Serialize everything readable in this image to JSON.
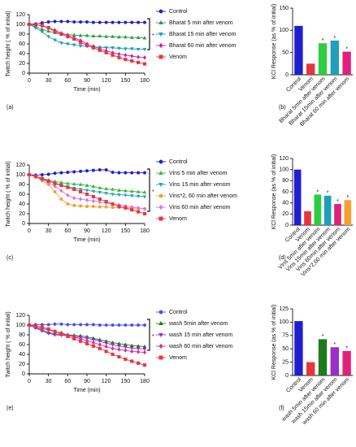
{
  "chart_data": [
    {
      "type": "line",
      "panel_label": "(a)",
      "xlabel": "Time (min)",
      "ylabel": "Twitch height ( % of initial)",
      "x": [
        0,
        10,
        20,
        30,
        40,
        50,
        60,
        70,
        80,
        90,
        100,
        110,
        120,
        130,
        140,
        150,
        160,
        170,
        180
      ],
      "xlim": [
        0,
        180
      ],
      "xticks": [
        0,
        30,
        60,
        90,
        120,
        150,
        180
      ],
      "ylim": [
        0,
        120
      ],
      "yticks": [
        0,
        20,
        40,
        60,
        80,
        100,
        120
      ],
      "series": [
        {
          "name": "Control",
          "color": "#1f1fd1",
          "marker": "circle",
          "values": [
            100,
            101,
            103,
            105,
            106,
            106,
            106,
            105,
            105,
            105,
            104,
            104,
            104,
            104,
            104,
            104,
            104,
            104,
            104
          ]
        },
        {
          "name": "Bharat 5 min after venom",
          "color": "#2e9e3a",
          "marker": "triangle",
          "values": [
            100,
            95,
            90,
            86,
            83,
            80,
            79,
            78,
            77,
            77,
            76,
            76,
            75,
            75,
            74,
            74,
            73,
            73,
            72
          ]
        },
        {
          "name": "Bharat 15 min after venom",
          "color": "#1fa0b8",
          "marker": "inverted-triangle",
          "values": [
            100,
            93,
            85,
            75,
            68,
            62,
            60,
            58,
            56,
            55,
            54,
            53,
            52,
            52,
            51,
            50,
            50,
            49,
            49
          ]
        },
        {
          "name": "Bharat 60 min after venom",
          "color": "#d21fa8",
          "marker": "diamond",
          "values": [
            100,
            99,
            97,
            93,
            88,
            82,
            78,
            72,
            67,
            60,
            55,
            50,
            46,
            42,
            39,
            37,
            35,
            33,
            32
          ]
        },
        {
          "name": "Venom",
          "color": "#e8343e",
          "marker": "square",
          "values": [
            100,
            99,
            98,
            93,
            85,
            80,
            75,
            70,
            63,
            57,
            52,
            47,
            42,
            37,
            32,
            28,
            25,
            22,
            19
          ]
        }
      ],
      "bracket": {
        "label": "*",
        "from": 1,
        "to": 3
      }
    },
    {
      "type": "bar",
      "panel_label": "(b)",
      "ylabel": "KCl Response (as % of initial)",
      "categories": [
        "Control",
        "Venom",
        "Bharat 5min after venom",
        "Bharat 15min after venom",
        "Bharat 60 min after venom"
      ],
      "values": [
        110,
        25,
        71,
        77,
        52
      ],
      "colors": [
        "#1f1fd1",
        "#e8343e",
        "#2ecc40",
        "#1fa0b8",
        "#e0207a"
      ],
      "significance": [
        null,
        null,
        "*",
        "*",
        "*"
      ],
      "ylim": [
        0,
        150
      ],
      "yticks": [
        0,
        50,
        100,
        150
      ]
    },
    {
      "type": "line",
      "panel_label": "(c)",
      "xlabel": "Time (min)",
      "ylabel": "Twitch height ( % of initial)",
      "x": [
        0,
        10,
        20,
        30,
        40,
        50,
        60,
        70,
        80,
        90,
        100,
        110,
        120,
        130,
        140,
        150,
        160,
        170,
        180
      ],
      "xlim": [
        0,
        180
      ],
      "xticks": [
        0,
        30,
        60,
        90,
        120,
        150,
        180
      ],
      "ylim": [
        0,
        120
      ],
      "yticks": [
        0,
        20,
        40,
        60,
        80,
        100,
        120
      ],
      "series": [
        {
          "name": "Control",
          "color": "#1f1fd1",
          "marker": "circle",
          "values": [
            100,
            99,
            100,
            101,
            103,
            104,
            105,
            106,
            107,
            108,
            109,
            110,
            110,
            105,
            104,
            104,
            104,
            104,
            104
          ]
        },
        {
          "name": "Vins 5 min after venom",
          "color": "#3cb83c",
          "marker": "triangle",
          "values": [
            100,
            97,
            93,
            89,
            86,
            84,
            82,
            81,
            80,
            78,
            76,
            73,
            71,
            70,
            68,
            67,
            66,
            65,
            64
          ]
        },
        {
          "name": "Vins 15 min after venom",
          "color": "#2aa6b8",
          "marker": "inverted-triangle",
          "values": [
            100,
            96,
            91,
            87,
            83,
            79,
            75,
            72,
            70,
            68,
            66,
            64,
            62,
            60,
            59,
            58,
            57,
            56,
            55
          ]
        },
        {
          "name": "Vins*2, 60 min after venom",
          "color": "#f5a030",
          "marker": "circle",
          "values": [
            100,
            95,
            88,
            80,
            65,
            50,
            40,
            37,
            36,
            35,
            35,
            34,
            34,
            33,
            33,
            32,
            32,
            31,
            30
          ]
        },
        {
          "name": "Vins 60 min after venom",
          "color": "#e070d8",
          "marker": "diamond",
          "values": [
            100,
            96,
            90,
            84,
            76,
            67,
            58,
            52,
            50,
            48,
            46,
            44,
            42,
            40,
            38,
            36,
            34,
            32,
            30
          ]
        },
        {
          "name": "Venom",
          "color": "#e8343e",
          "marker": "square",
          "values": [
            100,
            97,
            92,
            87,
            82,
            78,
            74,
            70,
            65,
            60,
            55,
            50,
            45,
            40,
            35,
            32,
            28,
            24,
            20
          ]
        }
      ],
      "bracket": {
        "label": "*",
        "from": 1,
        "to": 4
      }
    },
    {
      "type": "bar",
      "panel_label": "(d)",
      "ylabel": "KCl Response (as % of initial)",
      "categories": [
        "Control",
        "Venom",
        "Vins 5min after venom",
        "Vins 15min after venom",
        "Vins 60min after venom",
        "Vins*2,60 min after venom"
      ],
      "values": [
        100,
        25,
        55,
        53,
        38,
        45
      ],
      "colors": [
        "#1f1fd1",
        "#e8343e",
        "#2ecc40",
        "#1fa0b8",
        "#e0207a",
        "#f5a030"
      ],
      "significance": [
        null,
        null,
        "*",
        "*",
        "*",
        "*"
      ],
      "ylim": [
        0,
        120
      ],
      "yticks": [
        0,
        20,
        40,
        60,
        80,
        100,
        120
      ]
    },
    {
      "type": "line",
      "panel_label": "(e)",
      "xlabel": "Time (min)",
      "ylabel": "Twitch height ( % of initial)",
      "x": [
        0,
        10,
        20,
        30,
        40,
        50,
        60,
        70,
        80,
        90,
        100,
        110,
        120,
        130,
        140,
        150,
        160,
        170,
        180
      ],
      "xlim": [
        0,
        180
      ],
      "xticks": [
        0,
        30,
        60,
        90,
        120,
        150,
        180
      ],
      "ylim": [
        0,
        120
      ],
      "yticks": [
        0,
        20,
        40,
        60,
        80,
        100,
        120
      ],
      "series": [
        {
          "name": "Control",
          "color": "#5050e0",
          "marker": "circle",
          "values": [
            100,
            101,
            101,
            101,
            102,
            102,
            101,
            101,
            101,
            101,
            101,
            100,
            100,
            100,
            100,
            100,
            100,
            100,
            100
          ]
        },
        {
          "name": "wash 5min after venom",
          "color": "#1e7a1e",
          "marker": "triangle",
          "values": [
            100,
            95,
            90,
            85,
            82,
            81,
            80,
            79,
            78,
            76,
            73,
            70,
            67,
            64,
            62,
            60,
            58,
            57,
            56
          ]
        },
        {
          "name": "wash 15 min after venom",
          "color": "#9a2ec8",
          "marker": "inverted-triangle",
          "values": [
            100,
            94,
            88,
            83,
            80,
            79,
            78,
            77,
            75,
            73,
            70,
            67,
            63,
            60,
            57,
            55,
            53,
            52,
            51
          ]
        },
        {
          "name": "wash 60 min after venom",
          "color": "#d0309a",
          "marker": "diamond",
          "values": [
            100,
            97,
            93,
            90,
            87,
            84,
            80,
            76,
            72,
            68,
            64,
            60,
            56,
            52,
            50,
            48,
            46,
            45,
            44
          ]
        },
        {
          "name": "Venom",
          "color": "#e8343e",
          "marker": "square",
          "values": [
            100,
            98,
            96,
            92,
            87,
            82,
            77,
            72,
            67,
            62,
            57,
            52,
            46,
            40,
            35,
            30,
            26,
            22,
            18
          ]
        }
      ],
      "bracket": {
        "label": "*",
        "from": 1,
        "to": 3
      }
    },
    {
      "type": "bar",
      "panel_label": "(f)",
      "ylabel": "KCl Response (as % of initial)",
      "categories": [
        "Control",
        "Venom",
        "wash 5min after venom",
        "wash 15min after venom",
        "wash 60 min after venom"
      ],
      "values": [
        102,
        25,
        68,
        53,
        46
      ],
      "colors": [
        "#1f1fd1",
        "#e8343e",
        "#1e7a1e",
        "#9a2ec8",
        "#e0207a"
      ],
      "significance": [
        null,
        null,
        "*",
        "*",
        "*"
      ],
      "ylim": [
        0,
        125
      ],
      "yticks": [
        0,
        25,
        50,
        75,
        100,
        125
      ]
    }
  ]
}
